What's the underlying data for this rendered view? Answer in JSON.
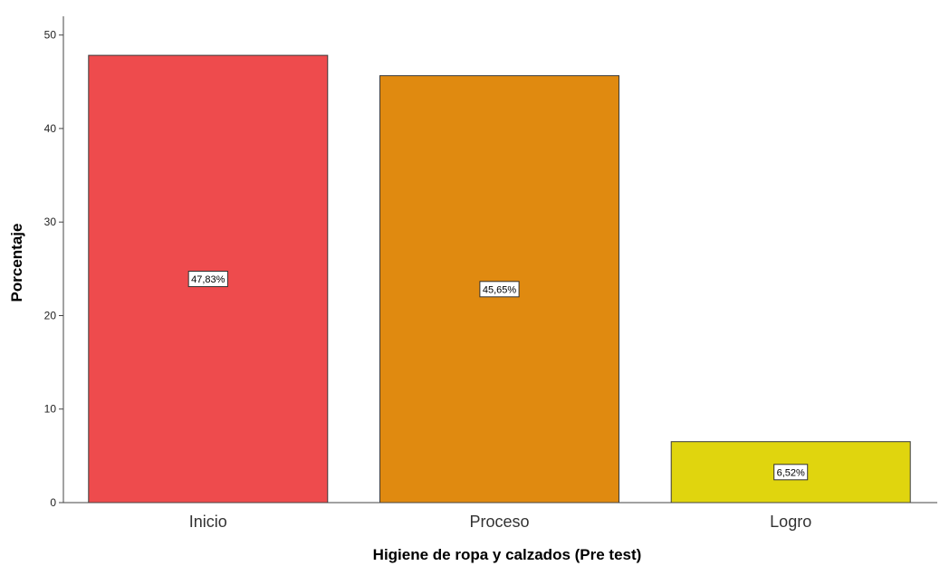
{
  "chart_data": {
    "type": "bar",
    "categories": [
      "Inicio",
      "Proceso",
      "Logro"
    ],
    "values": [
      47.83,
      45.65,
      6.52
    ],
    "data_labels": [
      "47,83%",
      "45,65%",
      "6,52%"
    ],
    "colors": [
      "#ee4b4d",
      "#e08a10",
      "#e0d50e"
    ],
    "title": "",
    "xlabel": "Higiene de ropa y calzados (Pre test)",
    "ylabel": "Porcentaje",
    "ylim": [
      0,
      52
    ],
    "yticks": [
      0,
      10,
      20,
      30,
      40,
      50
    ],
    "ytick_labels": [
      "0",
      "10",
      "20",
      "30",
      "40",
      "50"
    ],
    "grid": false,
    "legend": "none"
  }
}
